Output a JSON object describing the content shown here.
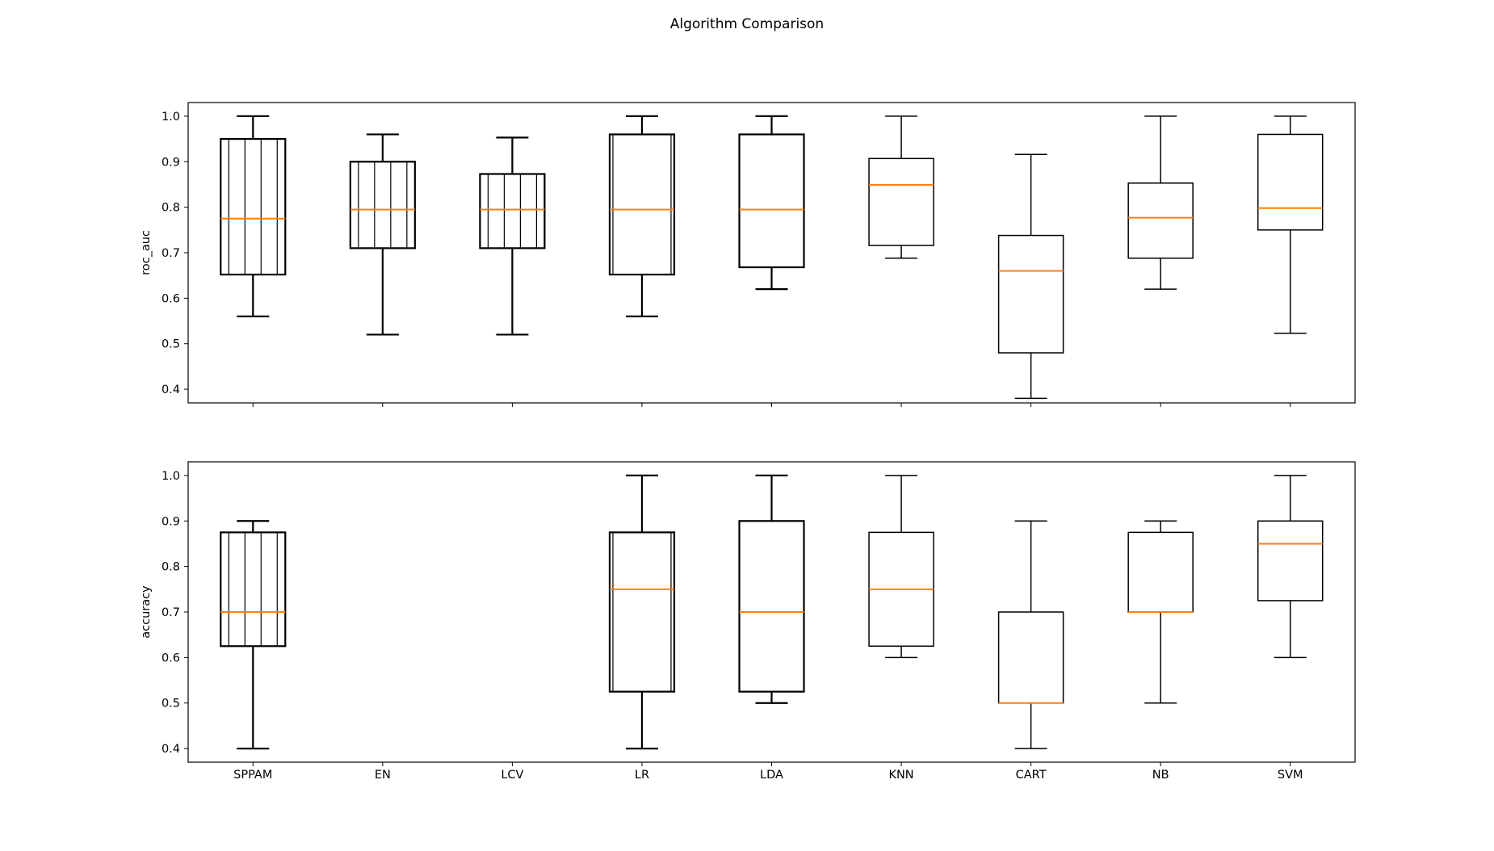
{
  "title": "Algorithm Comparison",
  "colors": {
    "box": "#000000",
    "median": "#ff7f0e",
    "frame": "#000000"
  },
  "chart_data": [
    {
      "type": "box",
      "ylabel": "roc_auc",
      "ylim": [
        0.37,
        1.03
      ],
      "yticks": [
        0.4,
        0.5,
        0.6,
        0.7,
        0.8,
        0.9,
        1.0
      ],
      "yticklabels": [
        "0.4",
        "0.5",
        "0.6",
        "0.7",
        "0.8",
        "0.9",
        "1.0"
      ],
      "show_xticklabels": false,
      "categories": [
        "SPPAM",
        "EN",
        "LCV",
        "LR",
        "LDA",
        "KNN",
        "CART",
        "NB",
        "SVM"
      ],
      "boxes": [
        {
          "whislo": 0.56,
          "q1": 0.652,
          "med": 0.775,
          "q3": 0.95,
          "whishi": 1.0
        },
        {
          "whislo": 0.52,
          "q1": 0.71,
          "med": 0.795,
          "q3": 0.9,
          "whishi": 0.96
        },
        {
          "whislo": 0.52,
          "q1": 0.71,
          "med": 0.795,
          "q3": 0.873,
          "whishi": 0.953
        },
        {
          "whislo": 0.56,
          "q1": 0.652,
          "med": 0.795,
          "q3": 0.96,
          "whishi": 1.0
        },
        {
          "whislo": 0.62,
          "q1": 0.668,
          "med": 0.795,
          "q3": 0.96,
          "whishi": 1.0
        },
        {
          "whislo": 0.688,
          "q1": 0.716,
          "med": 0.849,
          "q3": 0.907,
          "whishi": 1.0
        },
        {
          "whislo": 0.38,
          "q1": 0.48,
          "med": 0.66,
          "q3": 0.738,
          "whishi": 0.916
        },
        {
          "whislo": 0.62,
          "q1": 0.688,
          "med": 0.777,
          "q3": 0.853,
          "whishi": 1.0
        },
        {
          "whislo": 0.523,
          "q1": 0.75,
          "med": 0.798,
          "q3": 0.96,
          "whishi": 1.0
        }
      ]
    },
    {
      "type": "box",
      "ylabel": "accuracy",
      "ylim": [
        0.37,
        1.03
      ],
      "yticks": [
        0.4,
        0.5,
        0.6,
        0.7,
        0.8,
        0.9,
        1.0
      ],
      "yticklabels": [
        "0.4",
        "0.5",
        "0.6",
        "0.7",
        "0.8",
        "0.9",
        "1.0"
      ],
      "show_xticklabels": true,
      "categories": [
        "SPPAM",
        "EN",
        "LCV",
        "LR",
        "LDA",
        "KNN",
        "CART",
        "NB",
        "SVM"
      ],
      "boxes": [
        {
          "whislo": 0.4,
          "q1": 0.625,
          "med": 0.7,
          "q3": 0.875,
          "whishi": 0.9
        },
        null,
        null,
        {
          "whislo": 0.4,
          "q1": 0.525,
          "med": 0.75,
          "q3": 0.875,
          "whishi": 1.0
        },
        {
          "whislo": 0.5,
          "q1": 0.525,
          "med": 0.7,
          "q3": 0.9,
          "whishi": 1.0
        },
        {
          "whislo": 0.6,
          "q1": 0.625,
          "med": 0.75,
          "q3": 0.875,
          "whishi": 1.0
        },
        {
          "whislo": 0.4,
          "q1": 0.5,
          "med": 0.5,
          "q3": 0.7,
          "whishi": 0.9
        },
        {
          "whislo": 0.5,
          "q1": 0.7,
          "med": 0.7,
          "q3": 0.875,
          "whishi": 0.9
        },
        {
          "whislo": 0.6,
          "q1": 0.725,
          "med": 0.85,
          "q3": 0.9,
          "whishi": 1.0
        }
      ]
    }
  ]
}
